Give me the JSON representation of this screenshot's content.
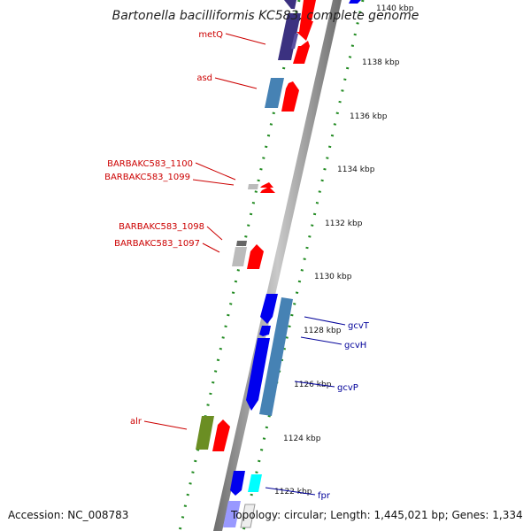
{
  "title": "Bartonella bacilliformis KC583, complete genome",
  "footer": {
    "accession": "Accession: NC_008783",
    "summary": "Topology: circular; Length: 1,445,021 bp; Genes: 1,334"
  },
  "scale_labels": [
    "1140 kbp",
    "1138 kbp",
    "1136 kbp",
    "1134 kbp",
    "1132 kbp",
    "1130 kbp",
    "1128 kbp",
    "1126 kbp",
    "1124 kbp",
    "1122 kbp"
  ],
  "genes_left": [
    "metQ",
    "asd",
    "BARBAKC583_1100",
    "BARBAKC583_1099",
    "BARBAKC583_1098",
    "BARBAKC583_1097",
    "alr"
  ],
  "genes_right": [
    "gcvT",
    "gcvH",
    "gcvP",
    "fpr"
  ],
  "colors": {
    "backbone": "#888888",
    "forward_cds": "#ff0000",
    "reverse_cds": "#0000ee",
    "steelblue": "#4682b4",
    "navy": "#3b3180",
    "olive": "#6b8e23",
    "cyan": "#00ffff",
    "gray": "#bbbbbb",
    "ticks": "#228b22"
  }
}
